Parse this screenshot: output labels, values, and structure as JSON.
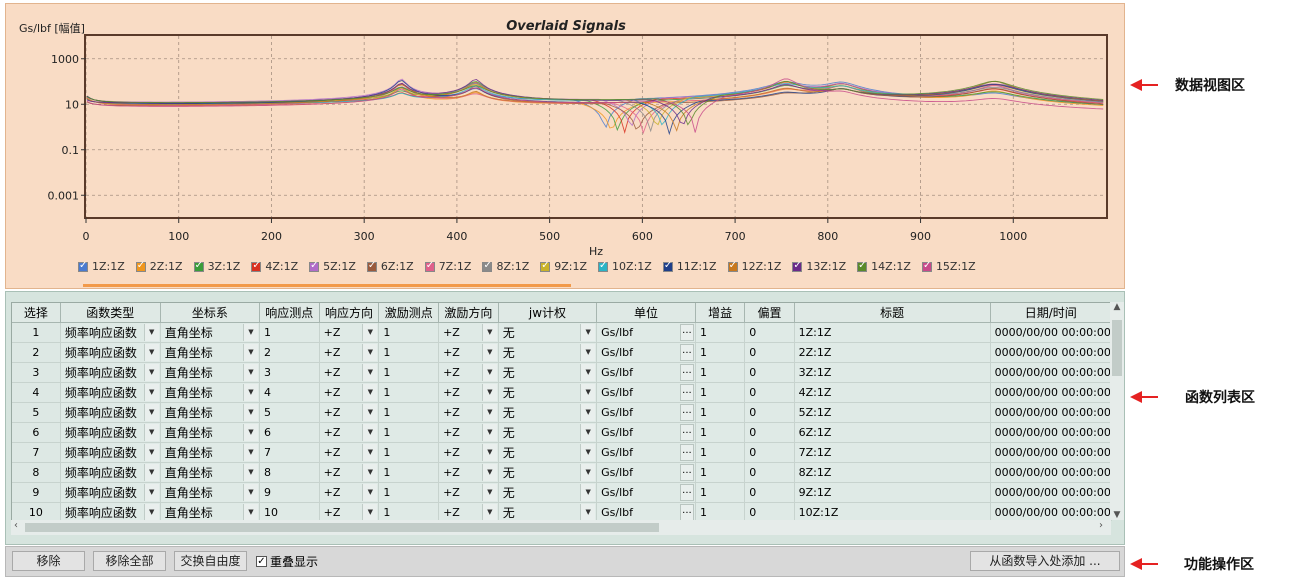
{
  "chart": {
    "title": "Overlaid Signals",
    "ylabel": "Gs/lbf [幅值]",
    "xlabel": "Hz",
    "y_ticks": [
      "1000",
      "10",
      "0.1",
      "0.001"
    ],
    "x_ticks": [
      "0",
      "100",
      "200",
      "300",
      "400",
      "500",
      "600",
      "700",
      "800",
      "900",
      "1000"
    ]
  },
  "chart_data": {
    "type": "line",
    "title": "Overlaid Signals",
    "xlabel": "Hz",
    "ylabel": "Gs/lbf [幅值]",
    "xlim": [
      0,
      1100
    ],
    "ylim": [
      0.0001,
      10000
    ],
    "yscale": "log",
    "grid": true,
    "legend_position": "bottom",
    "series": [
      {
        "name": "1Z:1Z",
        "color": "#4a7bd0"
      },
      {
        "name": "2Z:1Z",
        "color": "#f0961e"
      },
      {
        "name": "3Z:1Z",
        "color": "#3a9d3a"
      },
      {
        "name": "4Z:1Z",
        "color": "#d93020"
      },
      {
        "name": "5Z:1Z",
        "color": "#b06cc8"
      },
      {
        "name": "6Z:1Z",
        "color": "#9a5a3c"
      },
      {
        "name": "7Z:1Z",
        "color": "#e0608a"
      },
      {
        "name": "8Z:1Z",
        "color": "#8a8a8a"
      },
      {
        "name": "9Z:1Z",
        "color": "#c9b22a"
      },
      {
        "name": "10Z:1Z",
        "color": "#2bb4c6"
      },
      {
        "name": "11Z:1Z",
        "color": "#1f3f8a"
      },
      {
        "name": "12Z:1Z",
        "color": "#c8781e"
      },
      {
        "name": "13Z:1Z",
        "color": "#6a2a8a"
      },
      {
        "name": "14Z:1Z",
        "color": "#5a8a2a"
      },
      {
        "name": "15Z:1Z",
        "color": "#c84a8a"
      }
    ],
    "peaks_hz": [
      340,
      420,
      755,
      815,
      980
    ]
  },
  "legend": [
    {
      "label": "1Z:1Z",
      "color": "#4a7bd0"
    },
    {
      "label": "2Z:1Z",
      "color": "#f0961e"
    },
    {
      "label": "3Z:1Z",
      "color": "#3a9d3a"
    },
    {
      "label": "4Z:1Z",
      "color": "#d93020"
    },
    {
      "label": "5Z:1Z",
      "color": "#b06cc8"
    },
    {
      "label": "6Z:1Z",
      "color": "#9a5a3c"
    },
    {
      "label": "7Z:1Z",
      "color": "#e0608a"
    },
    {
      "label": "8Z:1Z",
      "color": "#8a8a8a"
    },
    {
      "label": "9Z:1Z",
      "color": "#c9b22a"
    },
    {
      "label": "10Z:1Z",
      "color": "#2bb4c6"
    },
    {
      "label": "11Z:1Z",
      "color": "#1f3f8a"
    },
    {
      "label": "12Z:1Z",
      "color": "#c8781e"
    },
    {
      "label": "13Z:1Z",
      "color": "#6a2a8a"
    },
    {
      "label": "14Z:1Z",
      "color": "#5a8a2a"
    },
    {
      "label": "15Z:1Z",
      "color": "#c84a8a"
    }
  ],
  "table": {
    "headers": [
      "选择",
      "函数类型",
      "坐标系",
      "响应测点",
      "响应方向",
      "激励测点",
      "激励方向",
      "jw计权",
      "单位",
      "增益",
      "偏置",
      "标题",
      "日期/时间"
    ],
    "rows": [
      {
        "sel": "1",
        "ftype": "频率响应函数",
        "coord": "直角坐标",
        "resp_pt": "1",
        "resp_dir": "+Z",
        "exc_pt": "1",
        "exc_dir": "+Z",
        "jw": "无",
        "unit": "Gs/lbf",
        "gain": "1",
        "offset": "0",
        "title": "1Z:1Z",
        "date": "0000/00/00 00:00:00"
      },
      {
        "sel": "2",
        "ftype": "频率响应函数",
        "coord": "直角坐标",
        "resp_pt": "2",
        "resp_dir": "+Z",
        "exc_pt": "1",
        "exc_dir": "+Z",
        "jw": "无",
        "unit": "Gs/lbf",
        "gain": "1",
        "offset": "0",
        "title": "2Z:1Z",
        "date": "0000/00/00 00:00:00"
      },
      {
        "sel": "3",
        "ftype": "频率响应函数",
        "coord": "直角坐标",
        "resp_pt": "3",
        "resp_dir": "+Z",
        "exc_pt": "1",
        "exc_dir": "+Z",
        "jw": "无",
        "unit": "Gs/lbf",
        "gain": "1",
        "offset": "0",
        "title": "3Z:1Z",
        "date": "0000/00/00 00:00:00"
      },
      {
        "sel": "4",
        "ftype": "频率响应函数",
        "coord": "直角坐标",
        "resp_pt": "4",
        "resp_dir": "+Z",
        "exc_pt": "1",
        "exc_dir": "+Z",
        "jw": "无",
        "unit": "Gs/lbf",
        "gain": "1",
        "offset": "0",
        "title": "4Z:1Z",
        "date": "0000/00/00 00:00:00"
      },
      {
        "sel": "5",
        "ftype": "频率响应函数",
        "coord": "直角坐标",
        "resp_pt": "5",
        "resp_dir": "+Z",
        "exc_pt": "1",
        "exc_dir": "+Z",
        "jw": "无",
        "unit": "Gs/lbf",
        "gain": "1",
        "offset": "0",
        "title": "5Z:1Z",
        "date": "0000/00/00 00:00:00"
      },
      {
        "sel": "6",
        "ftype": "频率响应函数",
        "coord": "直角坐标",
        "resp_pt": "6",
        "resp_dir": "+Z",
        "exc_pt": "1",
        "exc_dir": "+Z",
        "jw": "无",
        "unit": "Gs/lbf",
        "gain": "1",
        "offset": "0",
        "title": "6Z:1Z",
        "date": "0000/00/00 00:00:00"
      },
      {
        "sel": "7",
        "ftype": "频率响应函数",
        "coord": "直角坐标",
        "resp_pt": "7",
        "resp_dir": "+Z",
        "exc_pt": "1",
        "exc_dir": "+Z",
        "jw": "无",
        "unit": "Gs/lbf",
        "gain": "1",
        "offset": "0",
        "title": "7Z:1Z",
        "date": "0000/00/00 00:00:00"
      },
      {
        "sel": "8",
        "ftype": "频率响应函数",
        "coord": "直角坐标",
        "resp_pt": "8",
        "resp_dir": "+Z",
        "exc_pt": "1",
        "exc_dir": "+Z",
        "jw": "无",
        "unit": "Gs/lbf",
        "gain": "1",
        "offset": "0",
        "title": "8Z:1Z",
        "date": "0000/00/00 00:00:00"
      },
      {
        "sel": "9",
        "ftype": "频率响应函数",
        "coord": "直角坐标",
        "resp_pt": "9",
        "resp_dir": "+Z",
        "exc_pt": "1",
        "exc_dir": "+Z",
        "jw": "无",
        "unit": "Gs/lbf",
        "gain": "1",
        "offset": "0",
        "title": "9Z:1Z",
        "date": "0000/00/00 00:00:00"
      },
      {
        "sel": "10",
        "ftype": "频率响应函数",
        "coord": "直角坐标",
        "resp_pt": "10",
        "resp_dir": "+Z",
        "exc_pt": "1",
        "exc_dir": "+Z",
        "jw": "无",
        "unit": "Gs/lbf",
        "gain": "1",
        "offset": "0",
        "title": "10Z:1Z",
        "date": "0000/00/00 00:00:00"
      }
    ]
  },
  "actions": {
    "remove": "移除",
    "remove_all": "移除全部",
    "swap_dof": "交换自由度",
    "overlay_label": "重叠显示",
    "overlay_checked": true,
    "add_from_import": "从函数导入处添加 ..."
  },
  "annotations": {
    "data_view": "数据视图区",
    "function_list": "函数列表区",
    "operations": "功能操作区"
  },
  "colors": {
    "chart_bg": "#f9dcc5",
    "table_bg": "#d6e4de",
    "annotation_arrow": "#e52222"
  }
}
